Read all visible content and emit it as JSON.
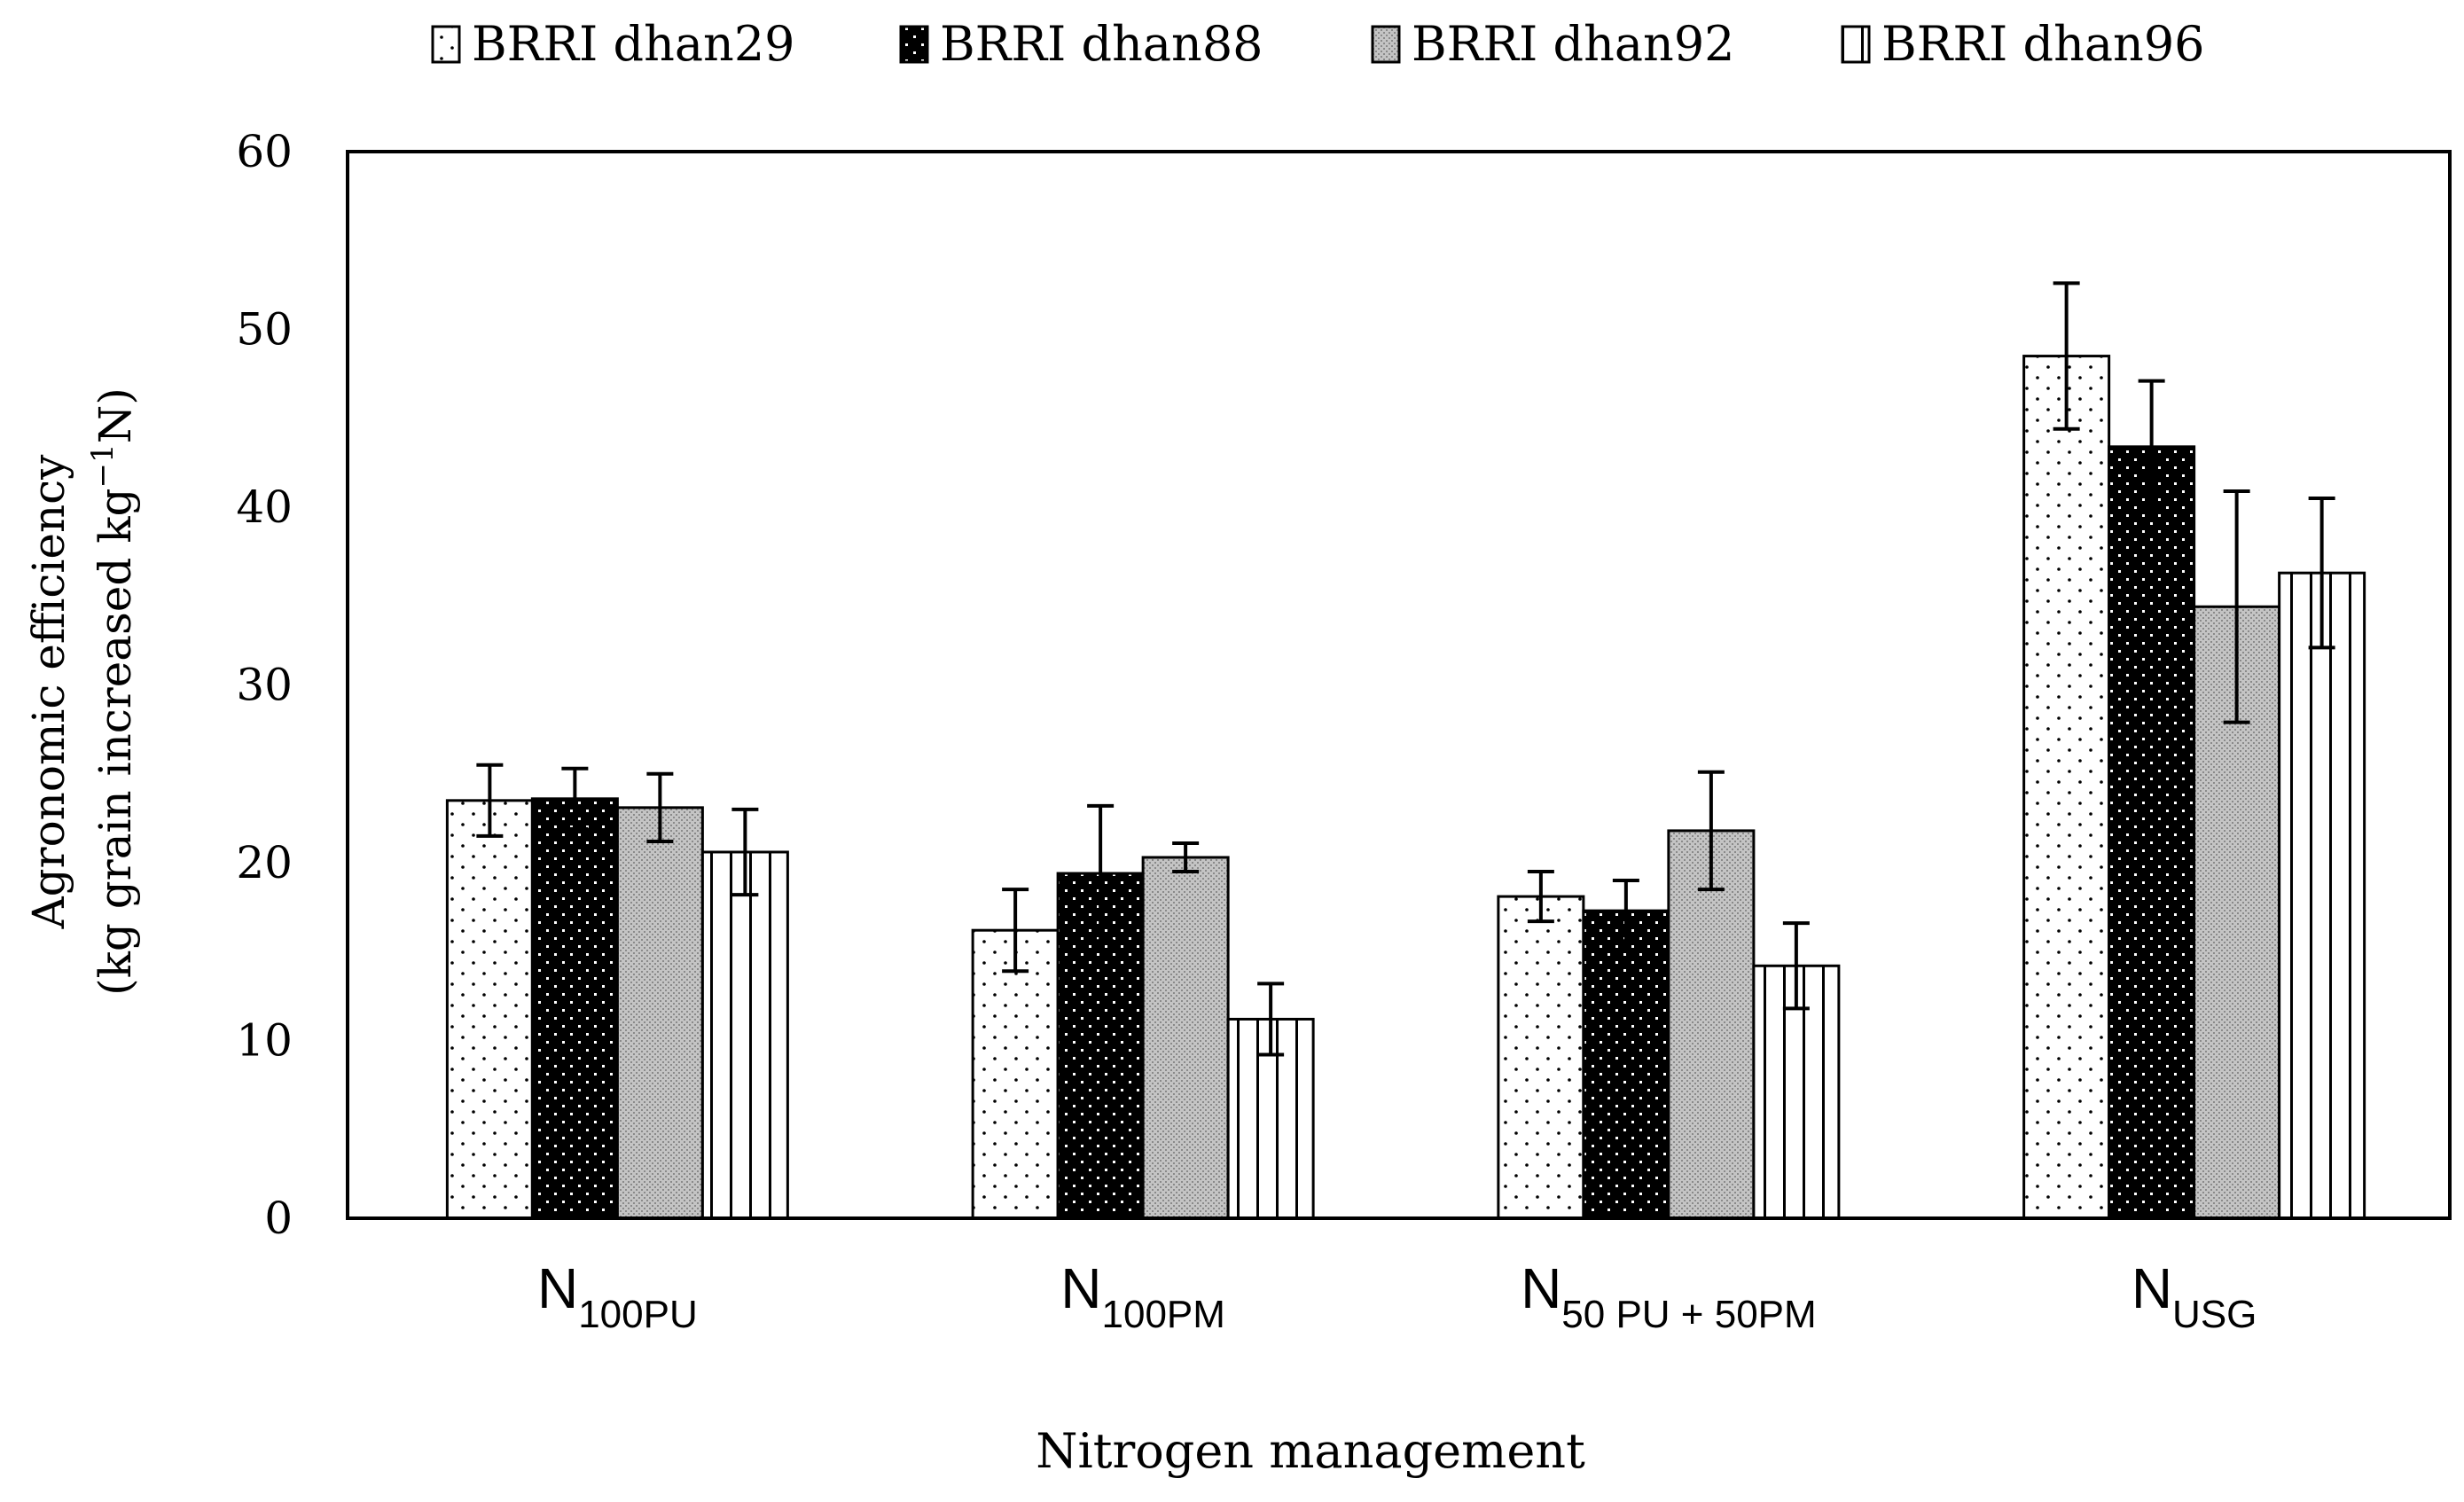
{
  "chart_data": {
    "type": "bar",
    "title": "",
    "xlabel": "Nitrogen management",
    "ylabel_line1": "Agronomic efficiency",
    "ylabel_line2_prefix": "(kg grain increased kg",
    "ylabel_line2_sup": "−1",
    "ylabel_line2_suffix": "N)",
    "ylim": [
      0,
      60
    ],
    "yticks": [
      "0",
      "10",
      "20",
      "30",
      "40",
      "50",
      "60"
    ],
    "categories": [
      {
        "main": "N",
        "sub": "100PU"
      },
      {
        "main": "N",
        "sub": "100PM"
      },
      {
        "main": "N",
        "sub": "50 PU + 50PM"
      },
      {
        "main": "N",
        "sub": "USG"
      }
    ],
    "series": [
      {
        "name": "BRRI dhan29",
        "pattern": "dots",
        "values": [
          23.5,
          16.2,
          18.1,
          48.5
        ],
        "errors": [
          2.0,
          2.3,
          1.4,
          4.1
        ]
      },
      {
        "name": "BRRI dhan88",
        "pattern": "black-dots",
        "values": [
          23.6,
          19.4,
          17.3,
          43.4
        ],
        "errors": [
          1.7,
          3.8,
          1.7,
          3.7
        ]
      },
      {
        "name": "BRRI dhan92",
        "pattern": "gray",
        "values": [
          23.1,
          20.3,
          21.8,
          34.4
        ],
        "errors": [
          1.9,
          0.8,
          3.3,
          6.5
        ]
      },
      {
        "name": "BRRI dhan96",
        "pattern": "vlines",
        "values": [
          20.6,
          11.2,
          14.2,
          36.3
        ],
        "errors": [
          2.4,
          2.0,
          2.4,
          4.2
        ]
      }
    ],
    "legend_position": "top",
    "grid": false
  }
}
